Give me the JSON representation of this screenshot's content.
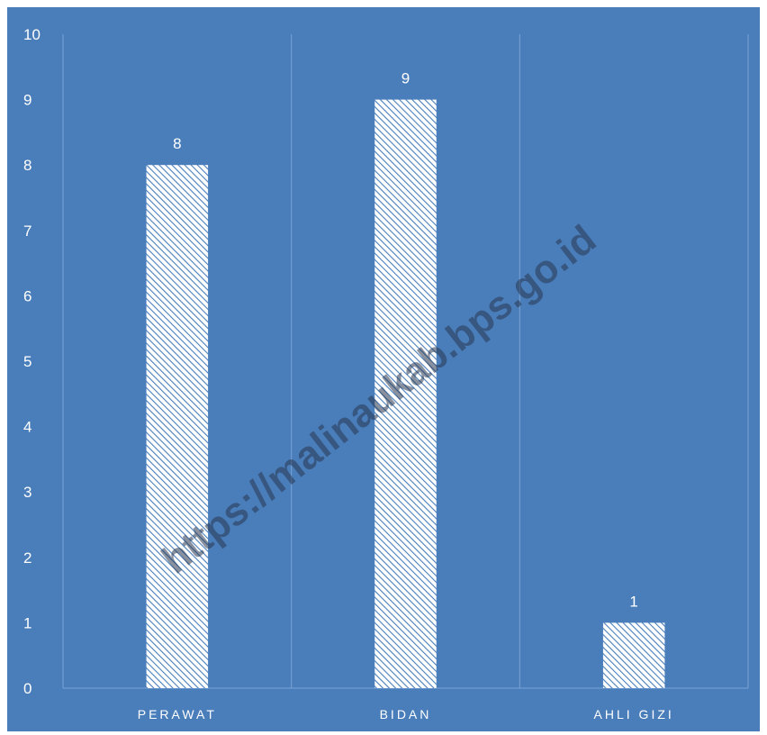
{
  "chart_data": {
    "type": "bar",
    "categories": [
      "PERAWAT",
      "BIDAN",
      "AHLI GIZI"
    ],
    "values": [
      8,
      9,
      1
    ],
    "data_labels": [
      "8",
      "9",
      "1"
    ],
    "y_ticks": [
      "0",
      "1",
      "2",
      "3",
      "4",
      "5",
      "6",
      "7",
      "8",
      "9",
      "10"
    ],
    "ylim": [
      0,
      10
    ],
    "grid": "vertical-separators",
    "legend": "none",
    "watermark": "https://malinaukab.bps.go.id",
    "colors": {
      "background": "#4a7ebb",
      "bar_fill": "#ffffff",
      "bar_hatch": "#4a7ebb",
      "gridline": "#7ba2d4",
      "text": "#ffffff"
    }
  }
}
